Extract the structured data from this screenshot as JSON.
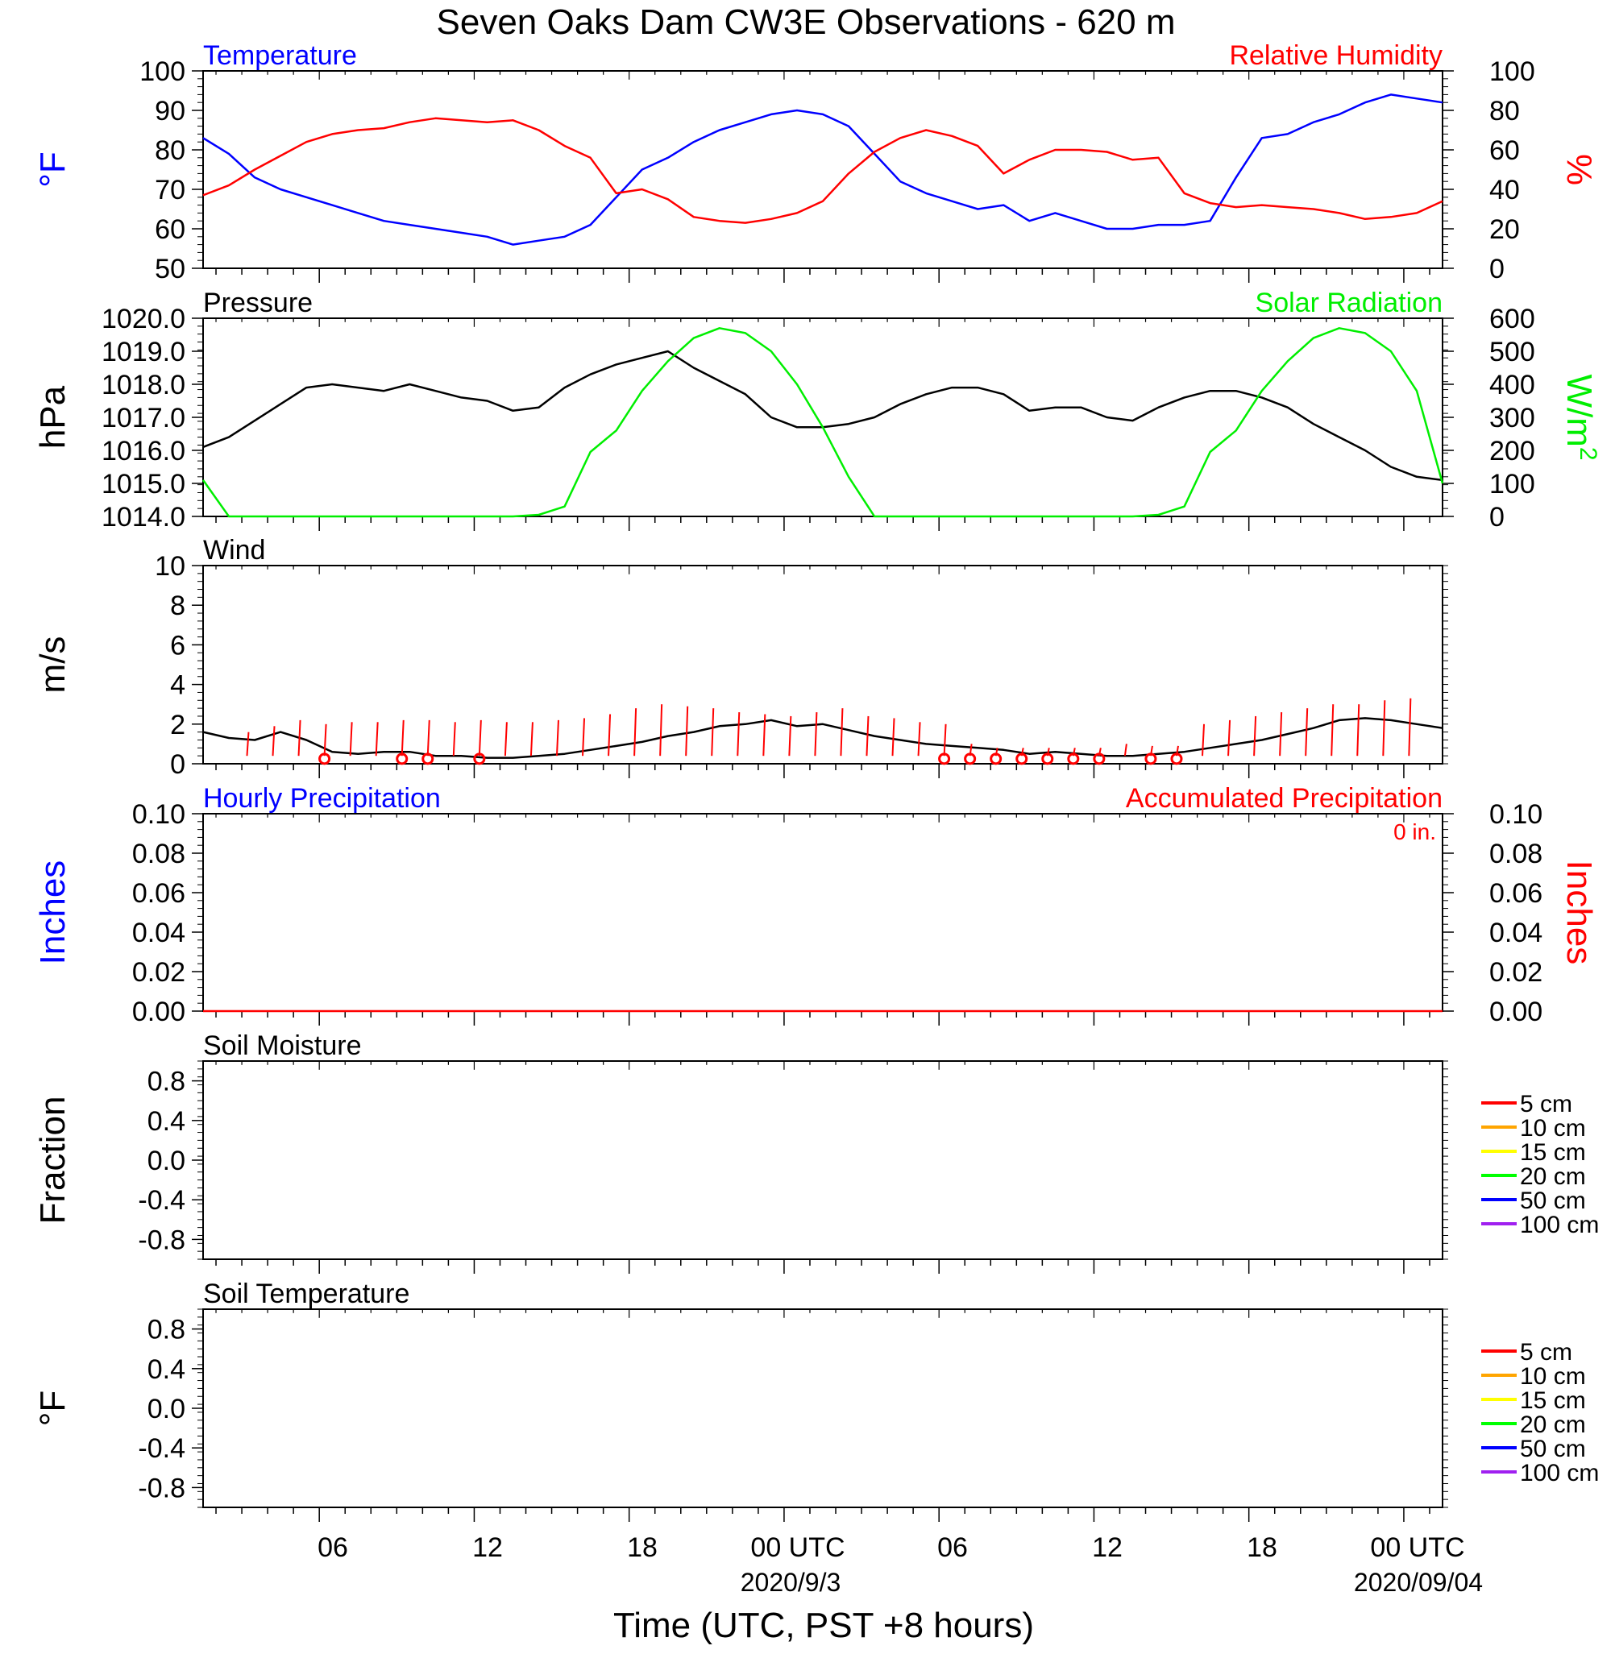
{
  "title": "Seven Oaks Dam CW3E Observations - 620 m",
  "xlabel": "Time (UTC, PST +8 hours)",
  "x_tick_labels": [
    "06",
    "12",
    "18",
    "00 UTC",
    "06",
    "12",
    "18",
    "00 UTC"
  ],
  "date_labels": [
    "2020/9/3",
    "2020/09/04"
  ],
  "colors": {
    "blue": "#0000ff",
    "red": "#ff0000",
    "green": "#00ee00",
    "black": "#000000"
  },
  "chart_data": [
    {
      "type": "line",
      "left_title": "Temperature",
      "right_title": "Relative Humidity",
      "ylabel_left": "°F",
      "ylabel_right": "%",
      "ylim_left": [
        50,
        100
      ],
      "ylim_right": [
        0,
        100
      ],
      "left_ticks": [
        "100",
        "90",
        "80",
        "70",
        "60",
        "50"
      ],
      "right_ticks": [
        "100",
        "80",
        "60",
        "40",
        "20",
        "0"
      ],
      "x_hours": [
        0,
        1,
        2,
        3,
        4,
        5,
        6,
        7,
        8,
        9,
        10,
        11,
        12,
        13,
        14,
        15,
        16,
        17,
        18,
        19,
        20,
        21,
        22,
        23,
        24,
        25,
        26,
        27,
        28,
        29,
        30,
        31,
        32,
        33,
        34,
        35,
        36,
        37,
        38,
        39,
        40,
        41,
        42,
        43,
        44,
        45,
        46,
        47,
        48
      ],
      "series": [
        {
          "name": "Temperature",
          "axis": "left",
          "color": "#0000ff",
          "values": [
            83,
            79,
            73,
            70,
            68,
            66,
            64,
            62,
            61,
            60,
            59,
            58,
            56,
            57,
            58,
            61,
            68,
            75,
            78,
            82,
            85,
            87,
            89,
            90,
            89,
            86,
            79,
            72,
            69,
            67,
            65,
            66,
            62,
            64,
            62,
            60,
            60,
            61,
            61,
            62,
            73,
            83,
            84,
            87,
            89,
            92,
            94,
            93,
            92
          ]
        },
        {
          "name": "Relative Humidity",
          "axis": "right",
          "color": "#ff0000",
          "values": [
            37,
            42,
            50,
            57,
            64,
            68,
            70,
            71,
            74,
            76,
            75,
            74,
            75,
            70,
            62,
            56,
            38,
            40,
            35,
            26,
            24,
            23,
            25,
            28,
            34,
            48,
            59,
            66,
            70,
            67,
            62,
            48,
            55,
            60,
            60,
            59,
            55,
            56,
            38,
            33,
            31,
            32,
            31,
            30,
            28,
            25,
            26,
            28,
            34
          ]
        }
      ]
    },
    {
      "type": "line",
      "left_title": "Pressure",
      "right_title": "Solar Radiation",
      "ylabel_left": "hPa",
      "ylabel_right": "W/m",
      "ylabel_right_sup": "2",
      "ylim_left": [
        1014,
        1020
      ],
      "ylim_right": [
        0,
        600
      ],
      "left_ticks": [
        "1020.0",
        "1019.0",
        "1018.0",
        "1017.0",
        "1016.0",
        "1015.0",
        "1014.0"
      ],
      "right_ticks": [
        "600",
        "500",
        "400",
        "300",
        "200",
        "100",
        "0"
      ],
      "x_hours": [
        0,
        1,
        2,
        3,
        4,
        5,
        6,
        7,
        8,
        9,
        10,
        11,
        12,
        13,
        14,
        15,
        16,
        17,
        18,
        19,
        20,
        21,
        22,
        23,
        24,
        25,
        26,
        27,
        28,
        29,
        30,
        31,
        32,
        33,
        34,
        35,
        36,
        37,
        38,
        39,
        40,
        41,
        42,
        43,
        44,
        45,
        46,
        47,
        48
      ],
      "series": [
        {
          "name": "Pressure",
          "axis": "left",
          "color": "#000000",
          "values": [
            1016.1,
            1016.4,
            1016.9,
            1017.4,
            1017.9,
            1018.0,
            1017.9,
            1017.8,
            1018.0,
            1017.8,
            1017.6,
            1017.5,
            1017.2,
            1017.3,
            1017.9,
            1018.3,
            1018.6,
            1018.8,
            1019.0,
            1018.5,
            1018.1,
            1017.7,
            1017.0,
            1016.7,
            1016.7,
            1016.8,
            1017.0,
            1017.4,
            1017.7,
            1017.9,
            1017.9,
            1017.7,
            1017.2,
            1017.3,
            1017.3,
            1017.0,
            1016.9,
            1017.3,
            1017.6,
            1017.8,
            1017.8,
            1017.6,
            1017.3,
            1016.8,
            1016.4,
            1016.0,
            1015.5,
            1015.2,
            1015.1
          ]
        },
        {
          "name": "Solar Radiation",
          "axis": "right",
          "color": "#00ee00",
          "values": [
            110,
            0,
            0,
            0,
            0,
            0,
            0,
            0,
            0,
            0,
            0,
            0,
            0,
            5,
            30,
            195,
            260,
            380,
            470,
            540,
            570,
            555,
            500,
            400,
            270,
            120,
            0,
            0,
            0,
            0,
            0,
            0,
            0,
            0,
            0,
            0,
            0,
            5,
            30,
            195,
            260,
            380,
            470,
            540,
            570,
            555,
            500,
            380,
            100
          ]
        }
      ]
    },
    {
      "type": "line",
      "left_title": "Wind",
      "ylabel_left": "m/s",
      "ylim_left": [
        0,
        10
      ],
      "left_ticks": [
        "10",
        "8",
        "6",
        "4",
        "2",
        "0"
      ],
      "x_hours": [
        0,
        1,
        2,
        3,
        4,
        5,
        6,
        7,
        8,
        9,
        10,
        11,
        12,
        13,
        14,
        15,
        16,
        17,
        18,
        19,
        20,
        21,
        22,
        23,
        24,
        25,
        26,
        27,
        28,
        29,
        30,
        31,
        32,
        33,
        34,
        35,
        36,
        37,
        38,
        39,
        40,
        41,
        42,
        43,
        44,
        45,
        46,
        47,
        48
      ],
      "series": [
        {
          "name": "Wind",
          "axis": "left",
          "color": "#000000",
          "values": [
            1.6,
            1.3,
            1.2,
            1.6,
            1.2,
            0.6,
            0.5,
            0.6,
            0.6,
            0.4,
            0.4,
            0.3,
            0.3,
            0.4,
            0.5,
            0.7,
            0.9,
            1.1,
            1.4,
            1.6,
            1.9,
            2.0,
            2.2,
            1.9,
            2.0,
            1.7,
            1.4,
            1.2,
            1.0,
            0.9,
            0.8,
            0.7,
            0.5,
            0.6,
            0.5,
            0.4,
            0.4,
            0.5,
            0.6,
            0.8,
            1.0,
            1.2,
            1.5,
            1.8,
            2.2,
            2.3,
            2.2,
            2.0,
            1.8
          ]
        }
      ],
      "barb_hours": [
        2,
        3,
        4,
        5,
        6,
        7,
        8,
        9,
        10,
        11,
        12,
        13,
        14,
        15,
        16,
        17,
        18,
        19,
        20,
        21,
        22,
        23,
        24,
        25,
        26,
        27,
        28,
        29,
        30,
        31,
        32,
        33,
        34,
        35,
        36,
        37,
        38,
        39,
        40,
        41,
        42,
        43,
        44,
        45,
        46,
        47
      ],
      "barb_lengths": [
        1.2,
        1.5,
        1.8,
        1.6,
        1.7,
        1.7,
        1.8,
        1.8,
        1.7,
        1.8,
        1.7,
        1.7,
        1.8,
        1.9,
        2.1,
        2.4,
        2.6,
        2.5,
        2.4,
        2.2,
        2.1,
        2.0,
        2.2,
        2.4,
        2.0,
        1.9,
        1.7,
        1.6,
        0.6,
        0.4,
        0.4,
        0.4,
        0.4,
        0.4,
        0.6,
        0.5,
        0.5,
        1.6,
        1.8,
        2.0,
        2.2,
        2.4,
        2.6,
        2.6,
        2.8,
        2.9
      ],
      "calm_hours": [
        5,
        8,
        9,
        11,
        29,
        30,
        31,
        32,
        33,
        34,
        35,
        37,
        38
      ]
    },
    {
      "type": "line",
      "left_title": "Hourly Precipitation",
      "right_title": "Accumulated Precipitation",
      "annotation": "0 in.",
      "ylabel_left": "Inches",
      "ylabel_right": "Inches",
      "ylim_left": [
        0,
        0.1
      ],
      "ylim_right": [
        0,
        0.1
      ],
      "left_ticks": [
        "0.10",
        "0.08",
        "0.06",
        "0.04",
        "0.02",
        "0.00"
      ],
      "right_ticks": [
        "0.10",
        "0.08",
        "0.06",
        "0.04",
        "0.02",
        "0.00"
      ],
      "series": [
        {
          "name": "Accumulated Precipitation",
          "axis": "right",
          "color": "#ff0000",
          "x": [
            0,
            48
          ],
          "values": [
            0,
            0
          ]
        }
      ]
    },
    {
      "type": "line",
      "left_title": "Soil Moisture",
      "ylabel_left": "Fraction",
      "ylim_left": [
        -1,
        1
      ],
      "left_ticks": [
        "0.8",
        "0.4",
        "0.0",
        "-0.4",
        "-0.8"
      ],
      "legend": [
        {
          "label": "5 cm",
          "color": "#ff0000"
        },
        {
          "label": "10 cm",
          "color": "#ffa500"
        },
        {
          "label": "15 cm",
          "color": "#ffff00"
        },
        {
          "label": "20 cm",
          "color": "#00ff00"
        },
        {
          "label": "50 cm",
          "color": "#0000ff"
        },
        {
          "label": "100 cm",
          "color": "#a020f0"
        }
      ],
      "series": []
    },
    {
      "type": "line",
      "left_title": "Soil Temperature",
      "ylabel_left": "°F",
      "ylim_left": [
        -1,
        1
      ],
      "left_ticks": [
        "0.8",
        "0.4",
        "0.0",
        "-0.4",
        "-0.8"
      ],
      "legend": [
        {
          "label": "5 cm",
          "color": "#ff0000"
        },
        {
          "label": "10 cm",
          "color": "#ffa500"
        },
        {
          "label": "15 cm",
          "color": "#ffff00"
        },
        {
          "label": "20 cm",
          "color": "#00ff00"
        },
        {
          "label": "50 cm",
          "color": "#0000ff"
        },
        {
          "label": "100 cm",
          "color": "#a020f0"
        }
      ],
      "series": []
    }
  ]
}
